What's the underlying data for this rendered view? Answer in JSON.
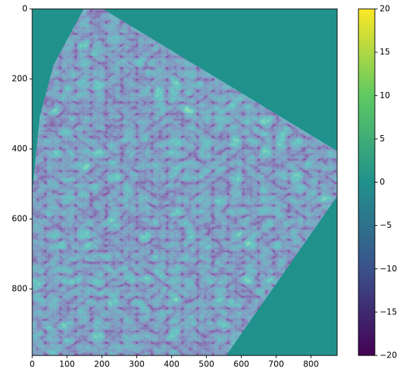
{
  "chart_data": {
    "type": "image",
    "xlim": [
      0,
      875
    ],
    "ylim": [
      990,
      0
    ],
    "xticks": [
      0,
      100,
      200,
      300,
      400,
      500,
      600,
      700,
      800
    ],
    "yticks": [
      0,
      200,
      400,
      600,
      800
    ],
    "colormap": [
      "#440154",
      "#3b528b",
      "#21918c",
      "#5ec962",
      "#fde725"
    ],
    "colorbar": {
      "clim": [
        -20,
        20
      ],
      "ticks": [
        20,
        15,
        10,
        5,
        0,
        {
          "value": -5,
          "label": "−5"
        },
        {
          "value": -10,
          "label": "−10"
        },
        {
          "value": -15,
          "label": "−15"
        },
        {
          "value": -20,
          "label": "−20"
        }
      ]
    }
  }
}
